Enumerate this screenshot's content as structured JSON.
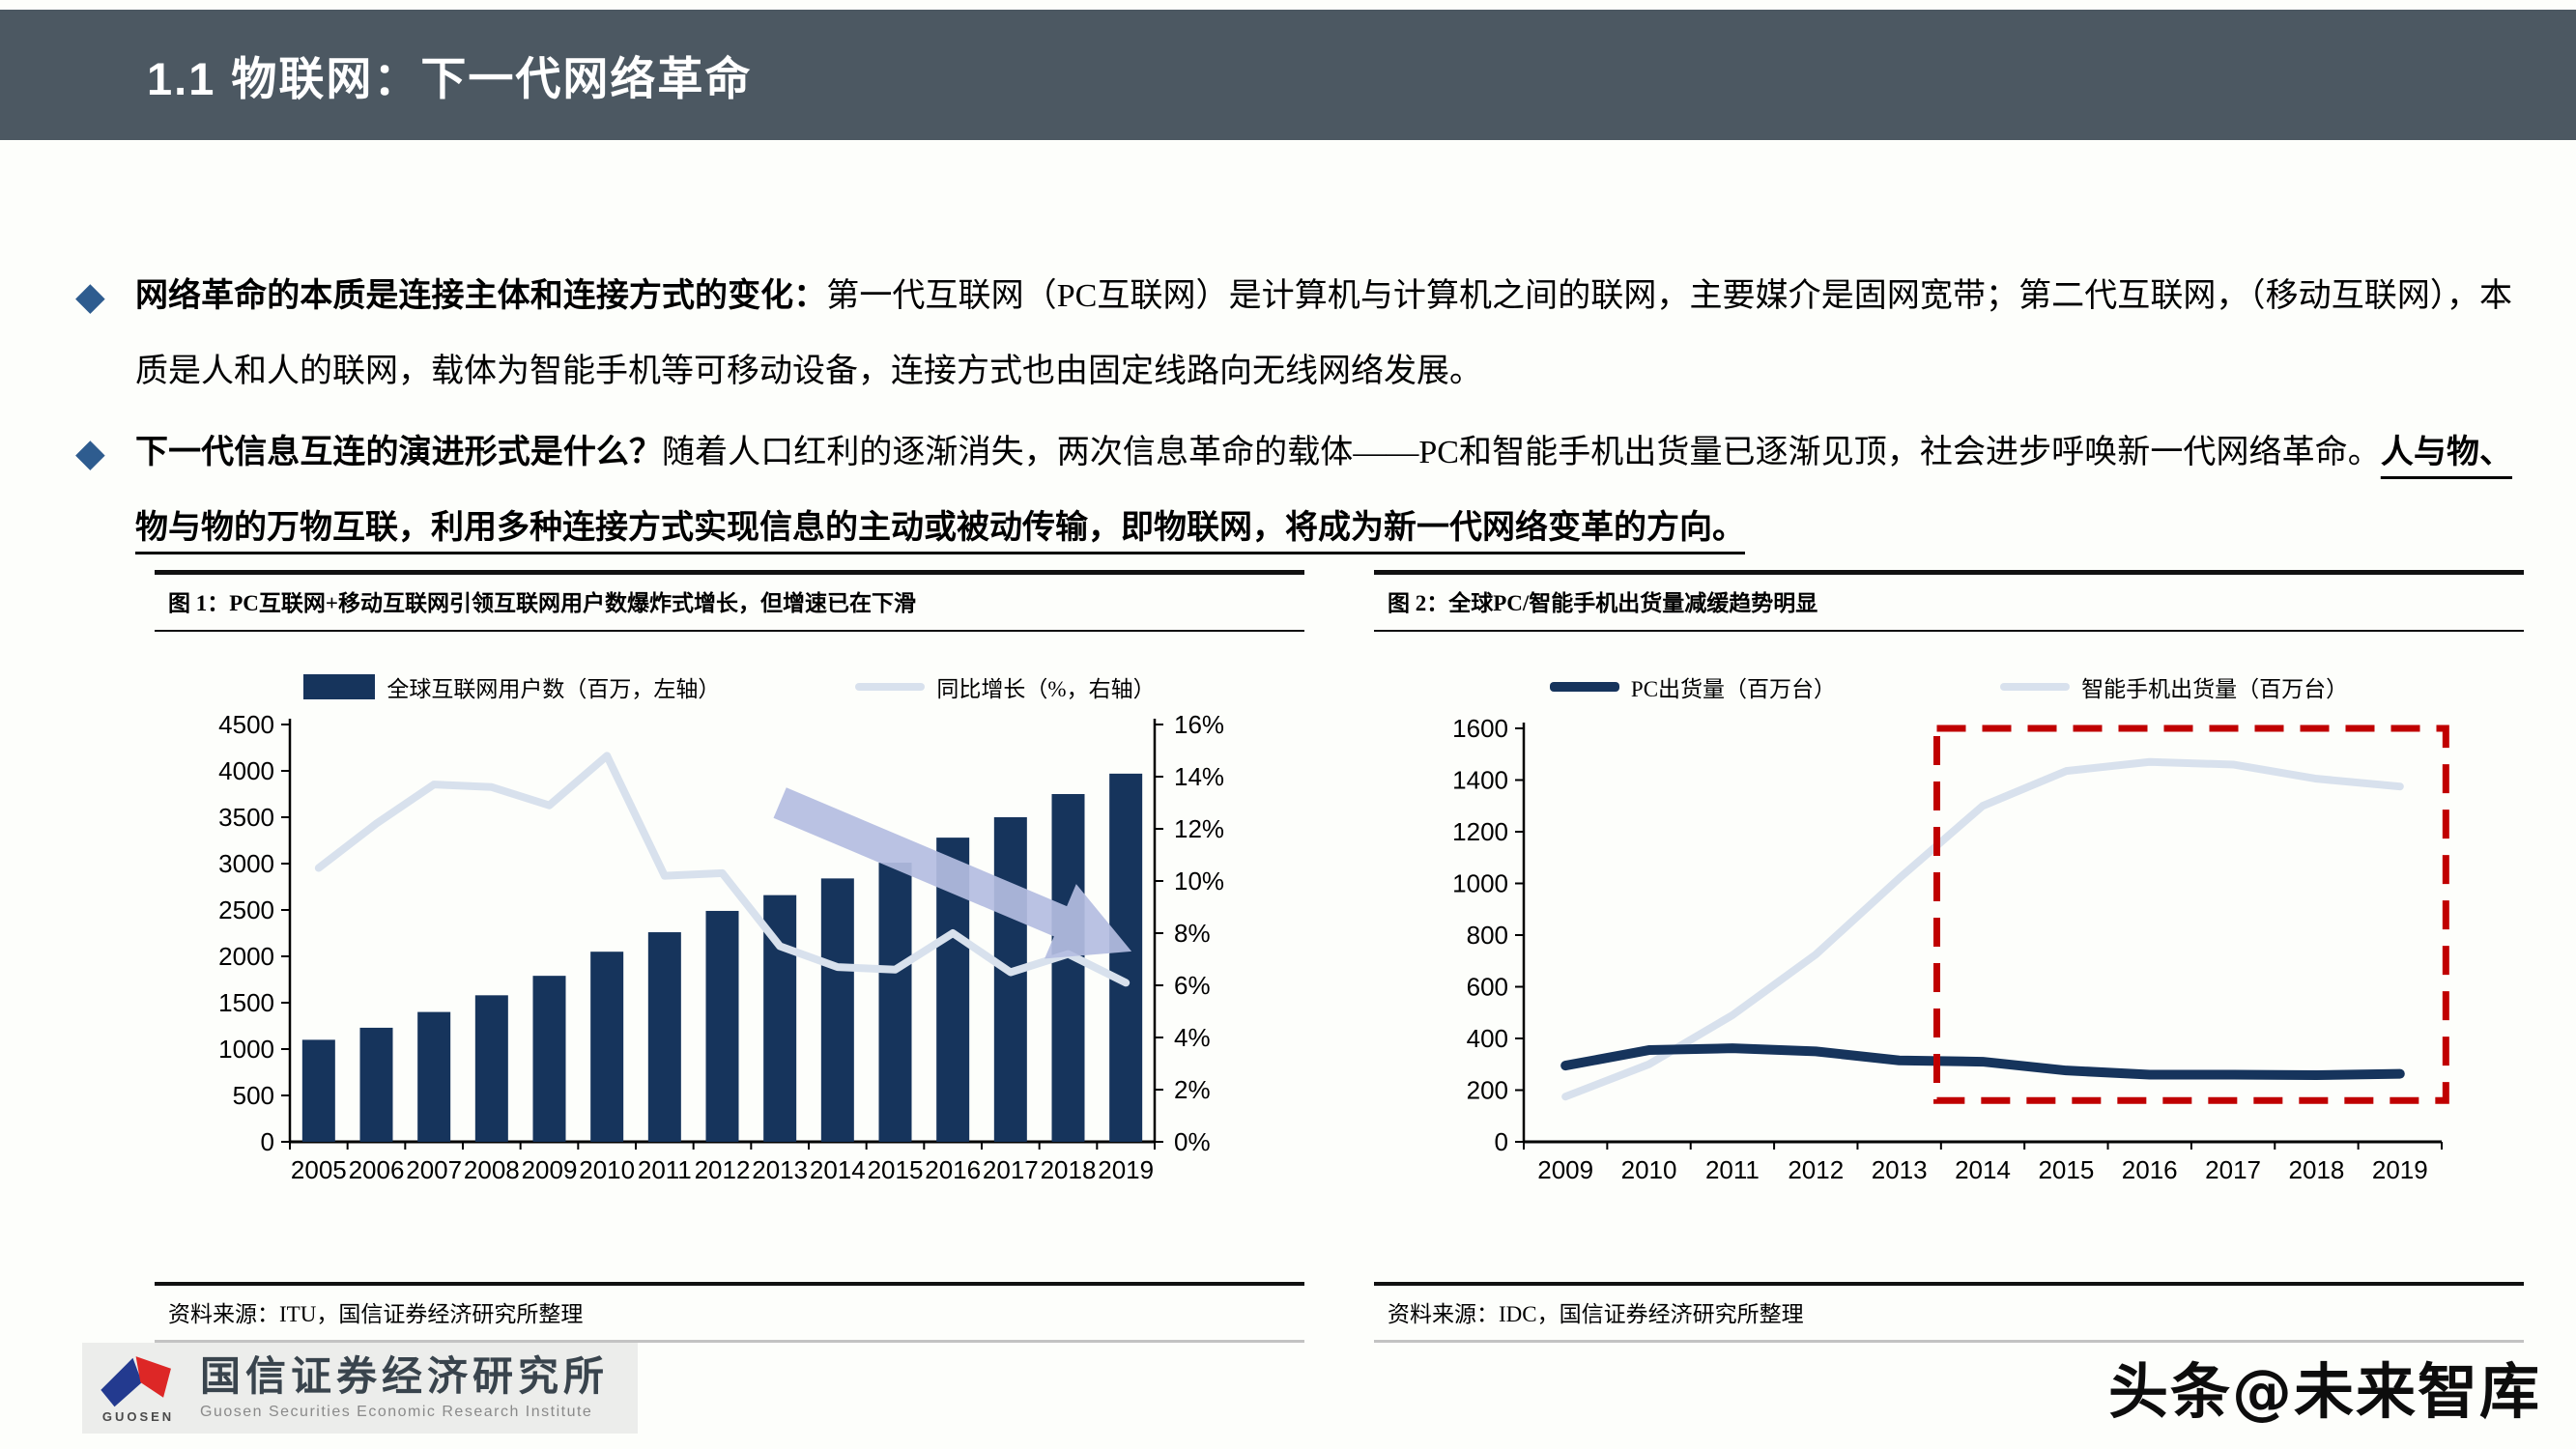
{
  "header": {
    "title_num": "1.1",
    "title_cn": "物联网：下一代网络革命"
  },
  "bullets": [
    {
      "lead_bold": "网络革命的本质是连接主体和连接方式的变化：",
      "body": "第一代互联网（PC互联网）是计算机与计算机之间的联网，主要媒介是固网宽带；第二代互联网，（移动互联网），本质是人和人的联网，载体为智能手机等可移动设备，连接方式也由固定线路向无线网络发展。",
      "tail_bold": ""
    },
    {
      "lead_bold": "下一代信息互连的演进形式是什么？",
      "body": "随着人口红利的逐渐消失，两次信息革命的载体——PC和智能手机出货量已逐渐见顶，社会进步呼唤新一代网络革命。",
      "tail_bold": "人与物、物与物的万物互联，利用多种连接方式实现信息的主动或被动传输，即物联网，将成为新一代网络变革的方向。"
    }
  ],
  "chart_data": [
    {
      "type": "bar",
      "title": "图 1：PC互联网+移动互联网引领互联网用户数爆炸式增长，但增速已在下滑",
      "source": "资料来源：ITU，国信证券经济研究所整理",
      "categories": [
        "2005",
        "2006",
        "2007",
        "2008",
        "2009",
        "2010",
        "2011",
        "2012",
        "2013",
        "2014",
        "2015",
        "2016",
        "2017",
        "2018",
        "2019"
      ],
      "series": [
        {
          "name": "全球互联网用户数（百万，左轴）",
          "type": "bar",
          "axis": "left",
          "color": "#16345C",
          "values": [
            1100,
            1230,
            1400,
            1580,
            1790,
            2050,
            2260,
            2490,
            2660,
            2840,
            3010,
            3280,
            3500,
            3750,
            3970
          ]
        },
        {
          "name": "同比增长（%，右轴）",
          "type": "line",
          "axis": "right",
          "color": "#D8E1ED",
          "stroke_width": 8,
          "values": [
            10.5,
            12.2,
            13.7,
            13.6,
            12.9,
            14.8,
            10.2,
            10.3,
            7.5,
            6.7,
            6.6,
            8.0,
            6.5,
            7.2,
            6.1
          ]
        }
      ],
      "left_axis": {
        "min": 0,
        "max": 4500,
        "step": 500
      },
      "right_axis": {
        "min": 0,
        "max": 16,
        "step": 2,
        "suffix": "%"
      },
      "legend_position": "top",
      "grid": false,
      "trend_arrow": {
        "from_year": 2013.0,
        "from_value": 13.0,
        "to_year": 2019.1,
        "to_value": 7.3,
        "color": "#B4BDE1"
      }
    },
    {
      "type": "line",
      "title": "图 2：全球PC/智能手机出货量减缓趋势明显",
      "source": "资料来源：IDC，国信证券经济研究所整理",
      "categories": [
        "2009",
        "2010",
        "2011",
        "2012",
        "2013",
        "2014",
        "2015",
        "2016",
        "2017",
        "2018",
        "2019"
      ],
      "series": [
        {
          "name": "PC出货量（百万台）",
          "color": "#16345C",
          "stroke_width": 10,
          "values": [
            295,
            355,
            362,
            350,
            315,
            310,
            276,
            260,
            260,
            258,
            263
          ]
        },
        {
          "name": "智能手机出货量（百万台）",
          "color": "#D8E1ED",
          "stroke_width": 8,
          "values": [
            175,
            300,
            490,
            725,
            1020,
            1300,
            1435,
            1470,
            1460,
            1405,
            1375
          ]
        }
      ],
      "left_axis": {
        "min": 0,
        "max": 1600,
        "step": 200
      },
      "legend_position": "top",
      "grid": false,
      "highlight_box": {
        "from_year": 2013.45,
        "to_year": 2019.55,
        "from_value": 160,
        "to_value": 1600,
        "color": "#C00000"
      }
    }
  ],
  "footer": {
    "logo_mark": "GUOSEN",
    "logo_cn": "国信证券经济研究所",
    "logo_en": "Guosen Securities Economic Research Institute",
    "watermark": "头条@未来智库"
  }
}
